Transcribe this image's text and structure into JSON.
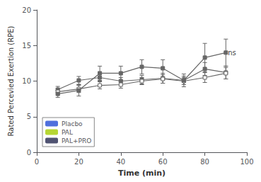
{
  "chart_data": {
    "type": "line",
    "xlabel": "Time (min)",
    "ylabel": "Rated Percevied Exertion (RPE)",
    "x": [
      10,
      20,
      30,
      40,
      50,
      60,
      70,
      80,
      90
    ],
    "series": [
      {
        "name": "Placbo",
        "color": "#666666",
        "marker": "square",
        "values": [
          8.8,
          10.1,
          10.5,
          10.0,
          10.2,
          10.4,
          10.1,
          11.7,
          11.2
        ],
        "errors": [
          0.45,
          0.55,
          0.5,
          0.5,
          0.6,
          0.7,
          0.6,
          0.9,
          0.9
        ]
      },
      {
        "name": "PAL",
        "color": "#666666",
        "marker": "open square",
        "values": [
          8.5,
          8.9,
          9.4,
          9.5,
          10.0,
          10.3,
          10.0,
          10.5,
          11.1
        ],
        "errors": [
          0.4,
          0.5,
          0.5,
          0.5,
          0.5,
          0.6,
          0.5,
          0.7,
          0.8
        ]
      },
      {
        "name": "PAL+PRO",
        "color": "#666666",
        "marker": "square",
        "values": [
          8.2,
          8.7,
          11.1,
          11.1,
          12.0,
          11.8,
          10.1,
          13.3,
          14.0
        ],
        "errors": [
          0.5,
          0.8,
          1.0,
          1.0,
          1.0,
          1.2,
          0.9,
          2.0,
          1.9
        ]
      }
    ],
    "annotations": [
      {
        "text": "ns",
        "x": 91,
        "y": 14.0
      }
    ],
    "xlim": [
      0,
      100
    ],
    "ylim": [
      0,
      20
    ],
    "xticks": [
      0,
      20,
      40,
      60,
      80,
      100
    ],
    "yticks": [
      0,
      5,
      10,
      15,
      20
    ],
    "grid": false,
    "legend": "lower left"
  }
}
